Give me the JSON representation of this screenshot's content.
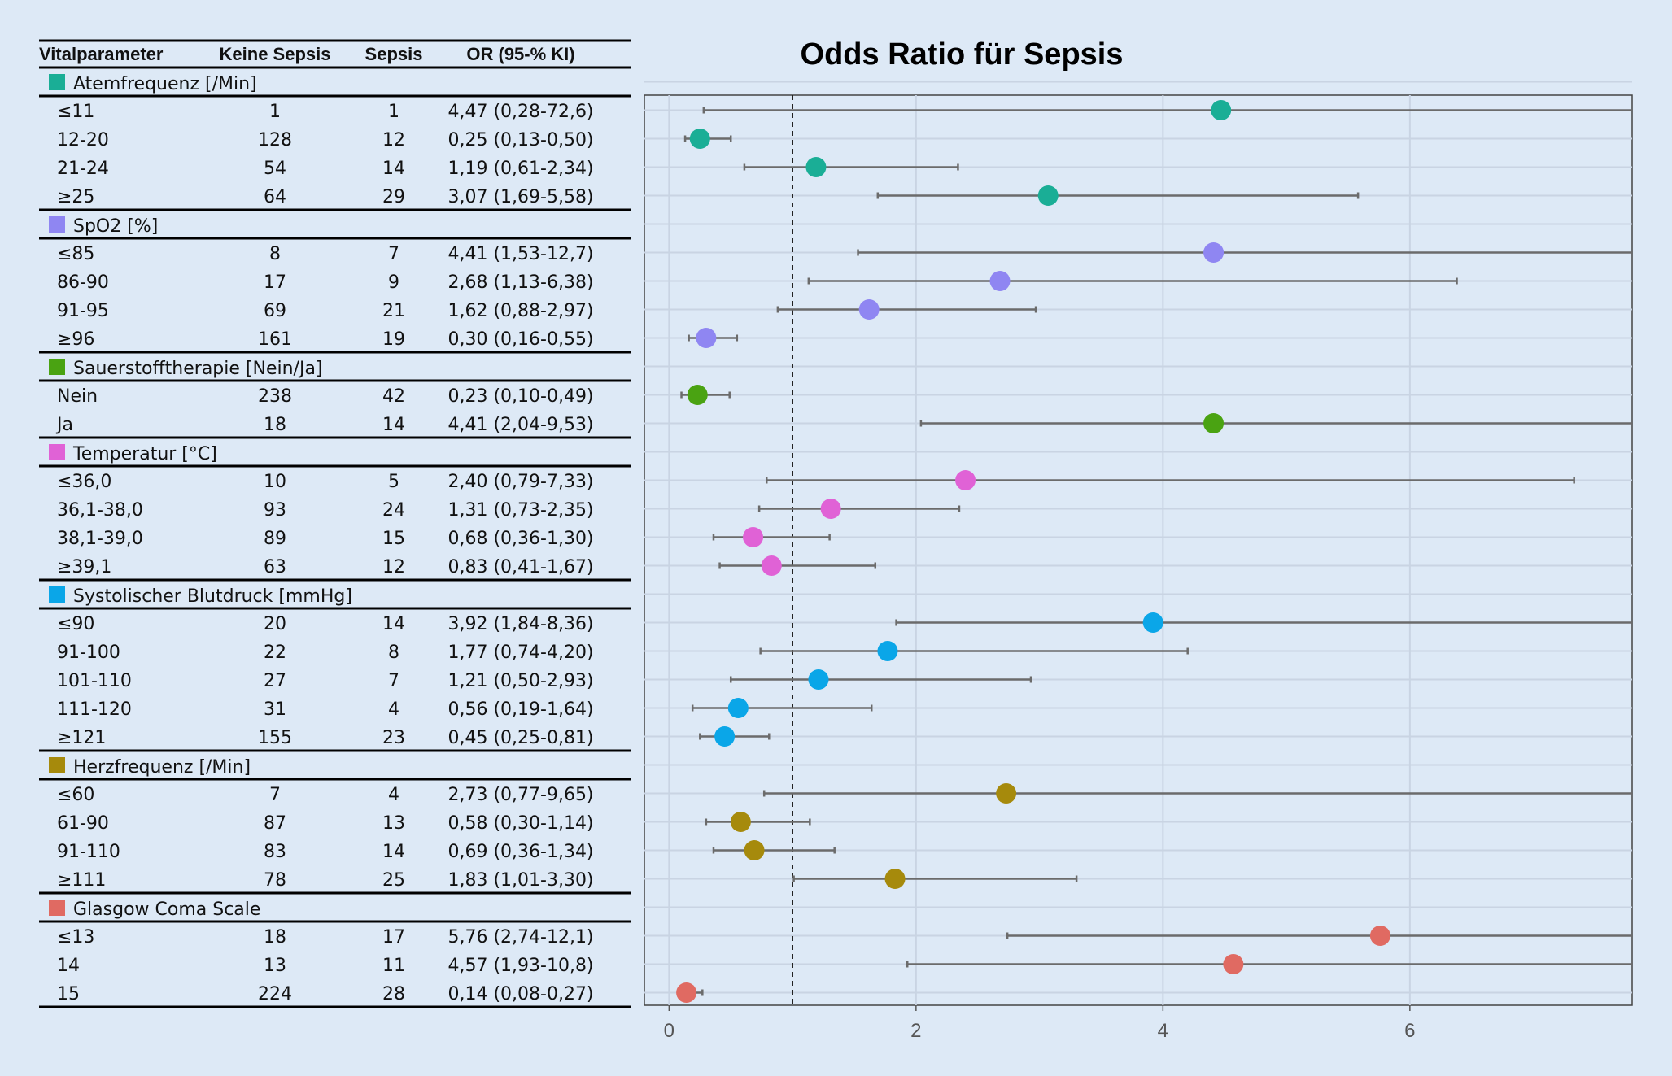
{
  "table": {
    "headers": [
      "Vitalparameter",
      "Keine Sepsis",
      "Sepsis",
      "OR (95-% KI)"
    ],
    "groups": [
      {
        "label": "Atemfrequenz [/Min]",
        "color": "#1aae96",
        "rows": [
          {
            "label": "≤11",
            "keine": "1",
            "sepsis": "1",
            "or_text": "4,47 (0,28-72,6)",
            "or": 4.47,
            "lo": 0.28,
            "hi": 72.6
          },
          {
            "label": "12-20",
            "keine": "128",
            "sepsis": "12",
            "or_text": "0,25 (0,13-0,50)",
            "or": 0.25,
            "lo": 0.13,
            "hi": 0.5
          },
          {
            "label": "21-24",
            "keine": "54",
            "sepsis": "14",
            "or_text": "1,19 (0,61-2,34)",
            "or": 1.19,
            "lo": 0.61,
            "hi": 2.34
          },
          {
            "label": "≥25",
            "keine": "64",
            "sepsis": "29",
            "or_text": "3,07 (1,69-5,58)",
            "or": 3.07,
            "lo": 1.69,
            "hi": 5.58
          }
        ]
      },
      {
        "label": "SpO2 [%]",
        "color": "#8f86f2",
        "rows": [
          {
            "label": "≤85",
            "keine": "8",
            "sepsis": "7",
            "or_text": "4,41 (1,53-12,7)",
            "or": 4.41,
            "lo": 1.53,
            "hi": 12.7
          },
          {
            "label": "86-90",
            "keine": "17",
            "sepsis": "9",
            "or_text": "2,68 (1,13-6,38)",
            "or": 2.68,
            "lo": 1.13,
            "hi": 6.38
          },
          {
            "label": "91-95",
            "keine": "69",
            "sepsis": "21",
            "or_text": "1,62 (0,88-2,97)",
            "or": 1.62,
            "lo": 0.88,
            "hi": 2.97
          },
          {
            "label": "≥96",
            "keine": "161",
            "sepsis": "19",
            "or_text": "0,30 (0,16-0,55)",
            "or": 0.3,
            "lo": 0.16,
            "hi": 0.55
          }
        ]
      },
      {
        "label": "Sauerstofftherapie [Nein/Ja]",
        "color": "#4aa312",
        "rows": [
          {
            "label": "Nein",
            "keine": "238",
            "sepsis": "42",
            "or_text": "0,23 (0,10-0,49)",
            "or": 0.23,
            "lo": 0.1,
            "hi": 0.49
          },
          {
            "label": "Ja",
            "keine": "18",
            "sepsis": "14",
            "or_text": "4,41 (2,04-9,53)",
            "or": 4.41,
            "lo": 2.04,
            "hi": 9.53
          }
        ]
      },
      {
        "label": "Temperatur [°C]",
        "color": "#e062d6",
        "rows": [
          {
            "label": "≤36,0",
            "keine": "10",
            "sepsis": "5",
            "or_text": "2,40 (0,79-7,33)",
            "or": 2.4,
            "lo": 0.79,
            "hi": 7.33
          },
          {
            "label": "36,1-38,0",
            "keine": "93",
            "sepsis": "24",
            "or_text": "1,31 (0,73-2,35)",
            "or": 1.31,
            "lo": 0.73,
            "hi": 2.35
          },
          {
            "label": "38,1-39,0",
            "keine": "89",
            "sepsis": "15",
            "or_text": "0,68 (0,36-1,30)",
            "or": 0.68,
            "lo": 0.36,
            "hi": 1.3
          },
          {
            "label": "≥39,1",
            "keine": "63",
            "sepsis": "12",
            "or_text": "0,83 (0,41-1,67)",
            "or": 0.83,
            "lo": 0.41,
            "hi": 1.67
          }
        ]
      },
      {
        "label": "Systolischer Blutdruck [mmHg]",
        "color": "#0aa6e8",
        "rows": [
          {
            "label": "≤90",
            "keine": "20",
            "sepsis": "14",
            "or_text": "3,92 (1,84-8,36)",
            "or": 3.92,
            "lo": 1.84,
            "hi": 8.36
          },
          {
            "label": "91-100",
            "keine": "22",
            "sepsis": "8",
            "or_text": "1,77 (0,74-4,20)",
            "or": 1.77,
            "lo": 0.74,
            "hi": 4.2
          },
          {
            "label": "101-110",
            "keine": "27",
            "sepsis": "7",
            "or_text": "1,21 (0,50-2,93)",
            "or": 1.21,
            "lo": 0.5,
            "hi": 2.93
          },
          {
            "label": "111-120",
            "keine": "31",
            "sepsis": "4",
            "or_text": "0,56 (0,19-1,64)",
            "or": 0.56,
            "lo": 0.19,
            "hi": 1.64
          },
          {
            "label": "≥121",
            "keine": "155",
            "sepsis": "23",
            "or_text": "0,45 (0,25-0,81)",
            "or": 0.45,
            "lo": 0.25,
            "hi": 0.81
          }
        ]
      },
      {
        "label": "Herzfrequenz [/Min]",
        "color": "#a68a0c",
        "rows": [
          {
            "label": "≤60",
            "keine": "7",
            "sepsis": "4",
            "or_text": "2,73 (0,77-9,65)",
            "or": 2.73,
            "lo": 0.77,
            "hi": 9.65
          },
          {
            "label": "61-90",
            "keine": "87",
            "sepsis": "13",
            "or_text": "0,58 (0,30-1,14)",
            "or": 0.58,
            "lo": 0.3,
            "hi": 1.14
          },
          {
            "label": "91-110",
            "keine": "83",
            "sepsis": "14",
            "or_text": "0,69 (0,36-1,34)",
            "or": 0.69,
            "lo": 0.36,
            "hi": 1.34
          },
          {
            "label": "≥111",
            "keine": "78",
            "sepsis": "25",
            "or_text": "1,83 (1,01-3,30)",
            "or": 1.83,
            "lo": 1.01,
            "hi": 3.3
          }
        ]
      },
      {
        "label": "Glasgow Coma Scale",
        "color": "#e06a62",
        "rows": [
          {
            "label": "≤13",
            "keine": "18",
            "sepsis": "17",
            "or_text": "5,76 (2,74-12,1)",
            "or": 5.76,
            "lo": 2.74,
            "hi": 12.1
          },
          {
            "label": "14",
            "keine": "13",
            "sepsis": "11",
            "or_text": "4,57 (1,93-10,8)",
            "or": 4.57,
            "lo": 1.93,
            "hi": 10.8
          },
          {
            "label": "15",
            "keine": "224",
            "sepsis": "28",
            "or_text": "0,14 (0,08-0,27)",
            "or": 0.14,
            "lo": 0.08,
            "hi": 0.27
          }
        ]
      }
    ]
  },
  "chart_data": {
    "type": "scatter",
    "title": "Odds Ratio für Sepsis",
    "xlabel": "",
    "ylabel": "",
    "xlim": [
      -0.2,
      7.8
    ],
    "xticks": [
      0,
      2,
      4,
      6
    ],
    "xtick_labels": [
      "0",
      "2",
      "4",
      "6"
    ],
    "reference_line_x": 1,
    "grid": true,
    "colors": {
      "background": "#dde9f6",
      "gridline": "#c9d4e3",
      "errorbar": "#6b6b6b",
      "frame": "#444444"
    }
  }
}
